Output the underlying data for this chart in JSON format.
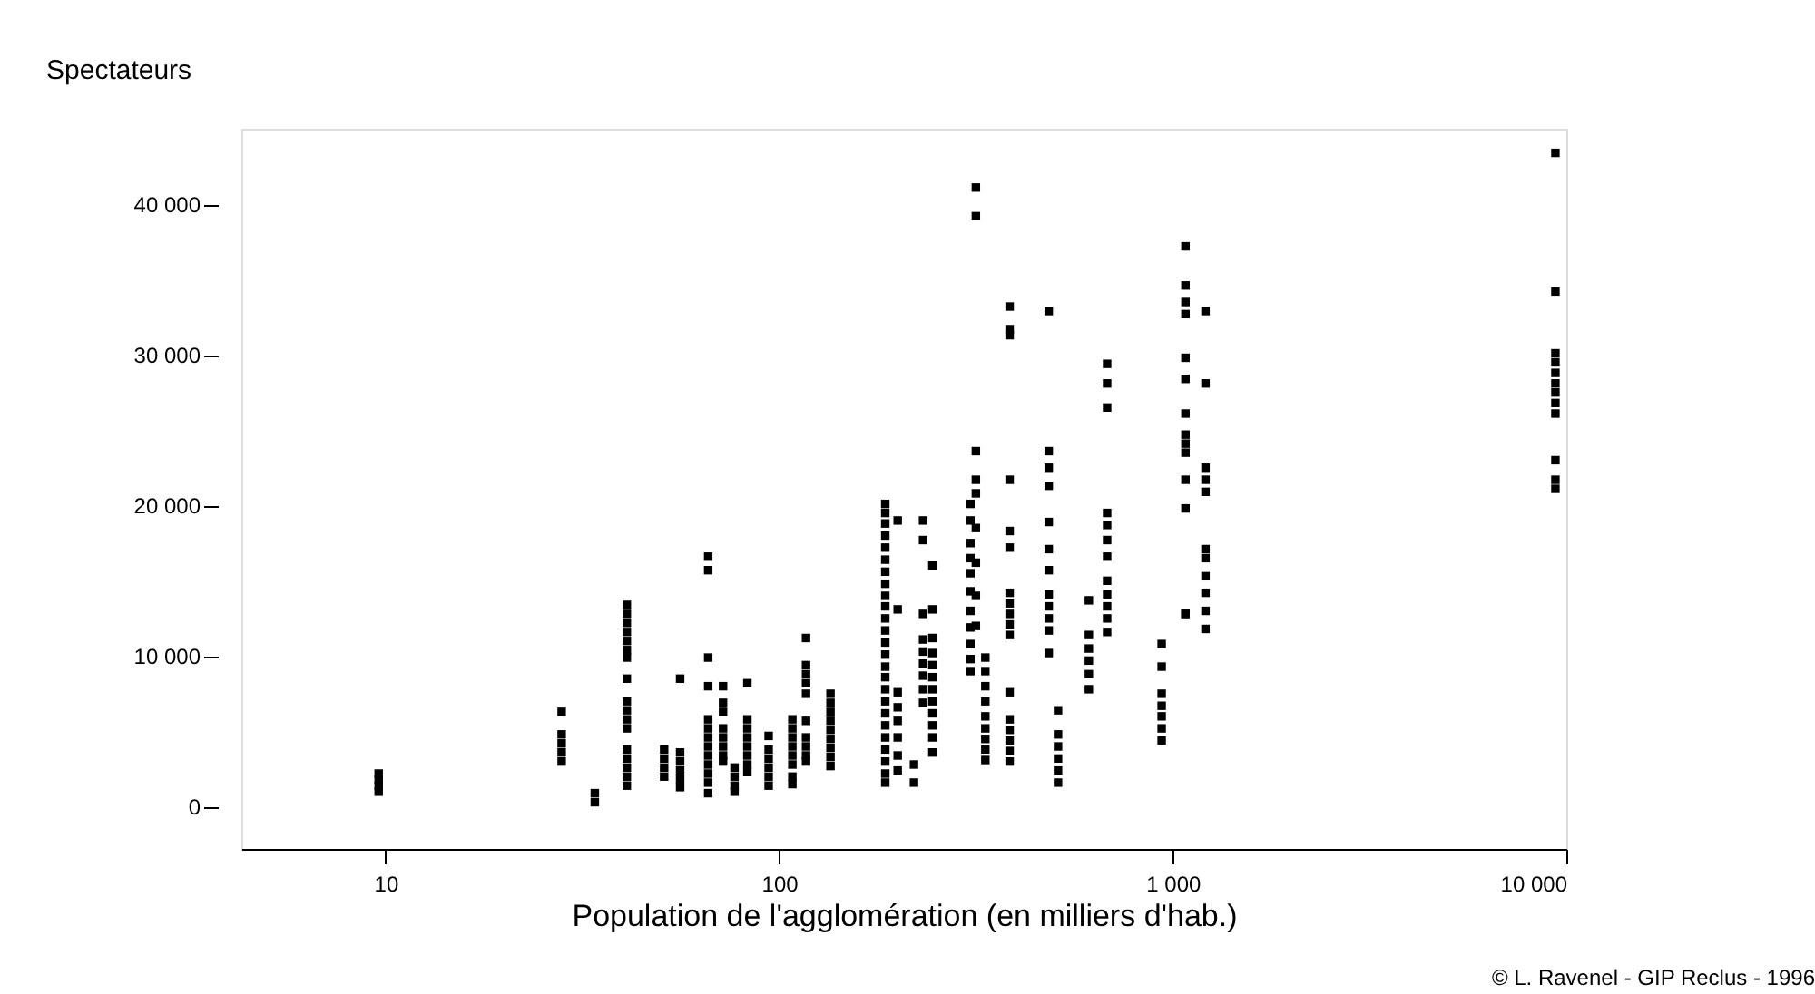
{
  "chart_data": {
    "type": "scatter",
    "ylabel": "Spectateurs",
    "xlabel": "Population de l'agglomération (en milliers d'hab.)",
    "annotations": [
      "© L. Ravenel - GIP Reclus - 1996"
    ],
    "log": "x",
    "grid": false,
    "legend": false,
    "marker": "square",
    "xlim": [
      4.3,
      10000
    ],
    "xticks": [
      10,
      100,
      {
        "value": 1000,
        "label": "1 000"
      },
      {
        "value": 10000,
        "label": "10 000"
      }
    ],
    "ylim": [
      -2800,
      45000
    ],
    "yticks": [
      0,
      {
        "value": 10000,
        "label": "10 000"
      },
      {
        "value": 20000,
        "label": "20 000"
      },
      {
        "value": 30000,
        "label": "30 000"
      },
      {
        "value": 40000,
        "label": "40 000"
      }
    ],
    "series": [
      {
        "color": "#000000",
        "x": [
          9.6,
          9.6,
          9.6,
          9.6,
          28,
          28,
          28,
          28,
          28,
          34,
          34,
          41,
          41,
          41,
          41,
          41,
          41,
          41,
          41,
          41,
          41,
          41,
          41,
          41,
          41,
          41,
          41,
          41,
          51,
          51,
          51,
          51,
          56,
          56,
          56,
          56,
          56,
          56,
          66,
          66,
          66,
          66,
          66,
          66,
          66,
          66,
          66,
          66,
          66,
          66,
          66,
          72,
          72,
          72,
          72,
          72,
          72,
          72,
          72,
          77,
          77,
          77,
          77,
          83,
          83,
          83,
          83,
          83,
          83,
          83,
          83,
          94,
          94,
          94,
          94,
          94,
          94,
          108,
          108,
          108,
          108,
          108,
          108,
          108,
          108,
          117,
          117,
          117,
          117,
          117,
          117,
          117,
          117,
          117,
          117,
          135,
          135,
          135,
          135,
          135,
          135,
          135,
          135,
          135,
          186,
          186,
          186,
          186,
          186,
          186,
          186,
          186,
          186,
          186,
          186,
          186,
          186,
          186,
          186,
          186,
          186,
          186,
          186,
          186,
          186,
          186,
          186,
          186,
          186,
          200,
          200,
          200,
          200,
          200,
          200,
          200,
          200,
          220,
          220,
          232,
          232,
          232,
          232,
          232,
          232,
          232,
          232,
          232,
          245,
          245,
          245,
          245,
          245,
          245,
          245,
          245,
          245,
          245,
          245,
          245,
          306,
          306,
          306,
          306,
          306,
          306,
          306,
          306,
          306,
          306,
          306,
          316,
          316,
          316,
          316,
          316,
          316,
          316,
          316,
          316,
          334,
          334,
          334,
          334,
          334,
          334,
          334,
          334,
          334,
          385,
          385,
          385,
          385,
          385,
          385,
          385,
          385,
          385,
          385,
          385,
          385,
          385,
          385,
          385,
          385,
          385,
          484,
          484,
          484,
          484,
          484,
          484,
          484,
          484,
          484,
          484,
          484,
          484,
          511,
          511,
          511,
          511,
          511,
          511,
          612,
          612,
          612,
          612,
          612,
          612,
          681,
          681,
          681,
          681,
          681,
          681,
          681,
          681,
          681,
          681,
          681,
          681,
          937,
          937,
          937,
          937,
          937,
          937,
          937,
          1077,
          1077,
          1077,
          1077,
          1077,
          1077,
          1077,
          1077,
          1077,
          1077,
          1077,
          1077,
          1077,
          1077,
          1211,
          1211,
          1211,
          1211,
          1211,
          1211,
          1211,
          1211,
          1211,
          1211,
          1211,
          9380,
          9380,
          9380,
          9380,
          9380,
          9380,
          9380,
          9380,
          9380,
          9380,
          9380,
          9380
        ],
        "values": [
          2200,
          1800,
          1400,
          1000,
          6300,
          4800,
          4200,
          3600,
          3000,
          900,
          300,
          13400,
          12800,
          12200,
          11600,
          11000,
          10400,
          9900,
          8500,
          7000,
          6400,
          5800,
          5200,
          3800,
          3200,
          2600,
          2000,
          1400,
          3800,
          3200,
          2600,
          2000,
          8500,
          3600,
          3000,
          2400,
          1800,
          1300,
          16600,
          15700,
          9900,
          8000,
          5800,
          5200,
          4600,
          4000,
          3400,
          2800,
          2200,
          1600,
          900,
          8000,
          6900,
          6300,
          5200,
          4600,
          4000,
          3400,
          3000,
          2600,
          2000,
          1400,
          1000,
          8200,
          5800,
          5200,
          4600,
          4000,
          3400,
          2800,
          2300,
          4700,
          3800,
          3200,
          2600,
          2000,
          1400,
          5800,
          5200,
          4600,
          4000,
          3400,
          2800,
          2000,
          1500,
          11200,
          9400,
          8800,
          8200,
          7500,
          5700,
          4600,
          4000,
          3400,
          3000,
          7500,
          6900,
          6300,
          5700,
          5100,
          4500,
          3900,
          3300,
          2700,
          20100,
          19500,
          18800,
          18000,
          17200,
          16400,
          15600,
          14800,
          14000,
          13300,
          12500,
          11700,
          10900,
          10100,
          9300,
          8600,
          7800,
          7000,
          6200,
          5400,
          4600,
          3800,
          3000,
          2200,
          1600,
          19000,
          13100,
          7600,
          6600,
          5700,
          4600,
          3400,
          2400,
          2800,
          1600,
          19000,
          17700,
          12800,
          11100,
          10300,
          9500,
          8700,
          7800,
          6900,
          16000,
          13100,
          11200,
          10200,
          9400,
          8600,
          7800,
          7000,
          6200,
          5400,
          4600,
          3600,
          20100,
          19000,
          17500,
          16500,
          15500,
          14300,
          13000,
          11900,
          10800,
          9800,
          9000,
          41100,
          39200,
          23600,
          21700,
          20800,
          18500,
          16200,
          14000,
          12000,
          9900,
          9000,
          8000,
          7000,
          6000,
          5200,
          4500,
          3800,
          3100,
          33200,
          31700,
          31300,
          21700,
          18300,
          17200,
          14200,
          13500,
          12800,
          12100,
          11400,
          7600,
          5800,
          5100,
          4400,
          3700,
          3000,
          32900,
          23600,
          22500,
          21300,
          18900,
          17100,
          15700,
          14100,
          13300,
          12500,
          11700,
          10200,
          6400,
          4800,
          4000,
          3200,
          2400,
          1600,
          13700,
          11400,
          10500,
          9700,
          8800,
          7800,
          29400,
          28100,
          26500,
          19500,
          18700,
          17700,
          16600,
          15000,
          14100,
          13300,
          12500,
          11600,
          10800,
          9300,
          7500,
          6700,
          6000,
          5200,
          4400,
          37200,
          34600,
          33500,
          32700,
          29800,
          28400,
          26100,
          24700,
          24100,
          23500,
          21700,
          19800,
          12800,
          12800,
          32900,
          28100,
          22500,
          21700,
          20900,
          17100,
          16500,
          15300,
          14200,
          13000,
          11800,
          43400,
          34200,
          30100,
          29500,
          28800,
          28100,
          27500,
          26800,
          26100,
          23000,
          21700,
          21100
        ]
      }
    ]
  }
}
